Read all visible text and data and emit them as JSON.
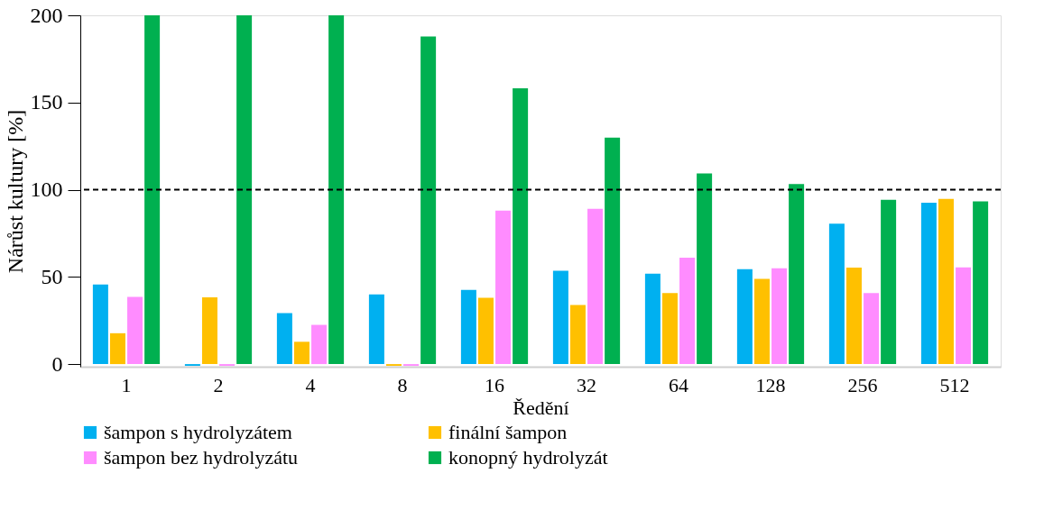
{
  "chart_data": {
    "type": "bar",
    "xlabel": "Ředění",
    "ylabel": "Nárůst kultury [%]",
    "categories": [
      "1",
      "2",
      "4",
      "8",
      "16",
      "32",
      "64",
      "128",
      "256",
      "512"
    ],
    "series": [
      {
        "name": "šampon s hydrolyzátem",
        "color": "#00b0f0",
        "values": [
          45.6,
          -1,
          29.3,
          39.9,
          42.5,
          53.5,
          51.8,
          54.4,
          80.5,
          92.5
        ]
      },
      {
        "name": "finální šampon",
        "color": "#ffc000",
        "values": [
          17.7,
          38.3,
          12.8,
          -1,
          38,
          33.9,
          40.7,
          48.9,
          55.3,
          94.7
        ]
      },
      {
        "name": "šampon bez hydrolyzátu",
        "color": "#ff8cff",
        "values": [
          38.5,
          -1,
          22.5,
          -1,
          88,
          89,
          61,
          54.9,
          40.7,
          55.4
        ]
      },
      {
        "name": "konopný hydrolyzát",
        "color": "#00b050",
        "values": [
          200,
          200,
          200,
          187.9,
          158.2,
          129.8,
          109.3,
          103.2,
          94.2,
          93.3
        ]
      }
    ],
    "ylim": [
      -1.5,
      200
    ],
    "yticks": [
      0,
      50,
      100,
      150,
      200
    ],
    "grid": false,
    "legend": "bottom",
    "ref_lines": [
      {
        "axis": "y",
        "value": 100,
        "line_style": "dashed",
        "color": "#000000"
      }
    ]
  }
}
